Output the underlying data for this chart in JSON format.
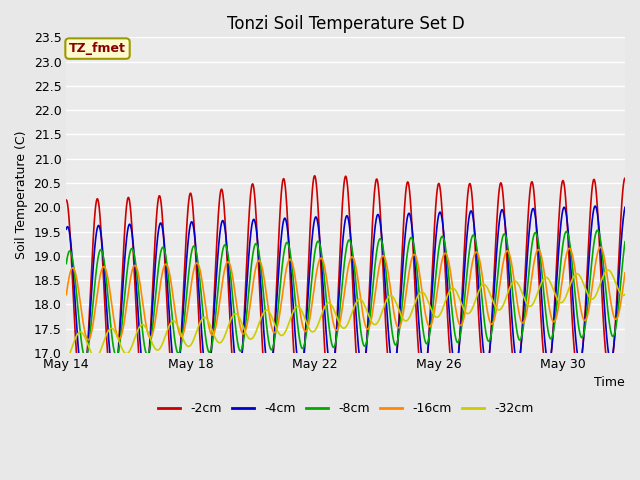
{
  "title": "Tonzi Soil Temperature Set D",
  "ylabel": "Soil Temperature (C)",
  "xlabel": "Time",
  "annotation_text": "TZ_fmet",
  "annotation_color": "#8B0000",
  "annotation_bg": "#FFFACD",
  "annotation_edge": "#999900",
  "ylim": [
    17.0,
    23.5
  ],
  "yticks": [
    17.0,
    17.5,
    18.0,
    18.5,
    19.0,
    19.5,
    20.0,
    20.5,
    21.0,
    21.5,
    22.0,
    22.5,
    23.0,
    23.5
  ],
  "xtick_labels": [
    "May 14",
    "May 18",
    "May 22",
    "May 26",
    "May 30"
  ],
  "xtick_positions": [
    0,
    4,
    8,
    12,
    16
  ],
  "series": {
    "-2cm": {
      "color": "#CC0000",
      "lw": 1.2
    },
    "-4cm": {
      "color": "#0000CC",
      "lw": 1.2
    },
    "-8cm": {
      "color": "#00AA00",
      "lw": 1.2
    },
    "-16cm": {
      "color": "#FF8800",
      "lw": 1.2
    },
    "-32cm": {
      "color": "#CCCC00",
      "lw": 1.2
    }
  },
  "legend_order": [
    "-2cm",
    "-4cm",
    "-8cm",
    "-16cm",
    "-32cm"
  ],
  "fig_bg_color": "#E8E8E8",
  "plot_bg": "#EBEBEB",
  "grid_color": "#FFFFFF",
  "title_fontsize": 12,
  "label_fontsize": 9,
  "tick_fontsize": 9,
  "legend_fontsize": 9,
  "n_days": 18,
  "points_per_day": 144
}
